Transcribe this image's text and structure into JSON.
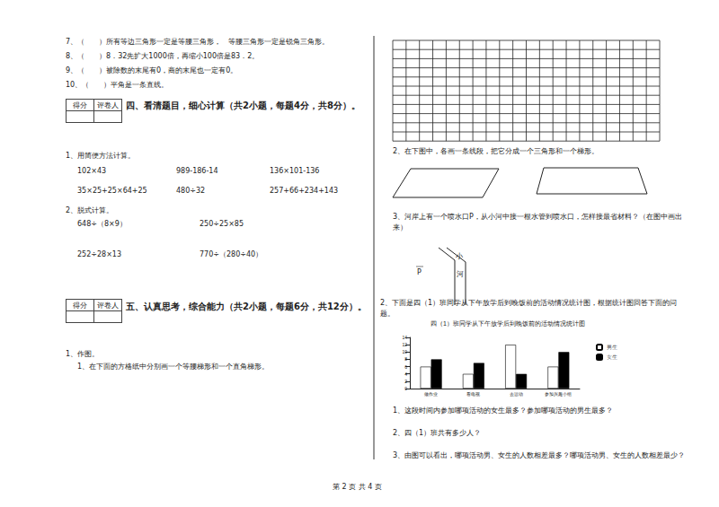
{
  "judgement": [
    "7、（　　）所有等边三角形一定是等腰三角形，　等腰三角形一定是锐角三角形。",
    "8、（　　）8．32先扩大1000倍，再缩小100倍是83．2。",
    "9、（　　）被除数的末尾有0，商的末尾也一定有0。",
    "10、（　　）平角是一条直线。"
  ],
  "score_box": [
    "得分",
    "评卷人"
  ],
  "section4": {
    "title": "四、看清题目，细心计算（共2小题，每题4分，共8分）。",
    "q1": {
      "prompt": "1、用简便方法计算。",
      "rows": [
        [
          "102×43",
          "989-186-14",
          "136×101-136"
        ],
        [
          "35×25+25×64+25",
          "480÷32",
          "257+66+234+143"
        ]
      ]
    },
    "q2": {
      "prompt": "2、脱式计算。",
      "rows": [
        [
          "648÷（8×9）",
          "250÷25×85"
        ],
        [
          "252÷28×13",
          "770÷（280÷40）"
        ]
      ]
    }
  },
  "section5": {
    "title": "五、认真思考，综合能力（共2小题，每题6分，共12分）。",
    "q1": "1、作图。",
    "q1_1": "1、在下面的方格纸中分别画一个等腰梯形和一个直角梯形。"
  },
  "right": {
    "q2": "2、在下图中，各画一条线段，把它分成一个三角形和一个梯形。",
    "q3": "3、河岸上有一个喷水口P，从小河中接一根水管到喷水口，怎样接最省材料？（在图中画出来）",
    "river_labels": [
      "小",
      "河"
    ],
    "point": "P",
    "chart_intro": "2、下面是四（1）班同学从下午放学后到晚饭前的活动情况统计图，根据统计图回答下面的问题。",
    "questions": [
      "1、这段时间内参加哪项活动的女生最多？参加哪项活动的男生最多？",
      "2、四（1）班共有多少人？",
      "3、由图可以看出，哪项活动男、女生的人数相差最多？哪项活动男、女生的人数相差最少？"
    ]
  },
  "footer": "第 2 页 共 4 页",
  "chart_data": {
    "type": "bar",
    "title": "四（1）班同学从下午放学后到晚饭前的活动情况统计图",
    "categories": [
      "做作业",
      "看电视",
      "去运动",
      "参加兴趣小组"
    ],
    "series": [
      {
        "name": "男生",
        "color": "#ffffff",
        "values": [
          6,
          4,
          12,
          6
        ]
      },
      {
        "name": "女生",
        "color": "#000000",
        "values": [
          8,
          7,
          4,
          10
        ]
      }
    ],
    "ylim": [
      0,
      14
    ],
    "yticks": [
      0,
      2,
      4,
      6,
      8,
      10,
      12,
      14
    ],
    "grid": false,
    "legend": "top-right"
  }
}
